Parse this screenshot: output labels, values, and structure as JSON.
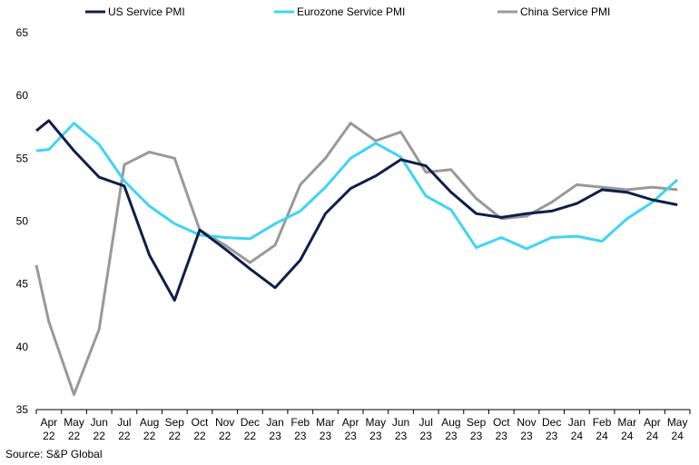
{
  "chart_data": {
    "type": "line",
    "categories": [
      "Apr 22",
      "May 22",
      "Jun 22",
      "Jul 22",
      "Aug 22",
      "Sep 22",
      "Oct 22",
      "Nov 22",
      "Dec 22",
      "Jan 23",
      "Feb 23",
      "Mar 23",
      "Apr 23",
      "May 23",
      "Jun 23",
      "Jul 23",
      "Aug 23",
      "Sep 23",
      "Oct 23",
      "Nov 23",
      "Dec 23",
      "Jan 24",
      "Feb 24",
      "Mar 24",
      "Apr 24",
      "May 24"
    ],
    "x_ticks": [
      {
        "month": "Apr",
        "year": "22"
      },
      {
        "month": "May",
        "year": "22"
      },
      {
        "month": "Jun",
        "year": "22"
      },
      {
        "month": "Jul",
        "year": "22"
      },
      {
        "month": "Aug",
        "year": "22"
      },
      {
        "month": "Sep",
        "year": "22"
      },
      {
        "month": "Oct",
        "year": "22"
      },
      {
        "month": "Nov",
        "year": "22"
      },
      {
        "month": "Dec",
        "year": "22"
      },
      {
        "month": "Jan",
        "year": "23"
      },
      {
        "month": "Feb",
        "year": "23"
      },
      {
        "month": "Mar",
        "year": "23"
      },
      {
        "month": "Apr",
        "year": "23"
      },
      {
        "month": "May",
        "year": "23"
      },
      {
        "month": "Jun",
        "year": "23"
      },
      {
        "month": "Jul",
        "year": "23"
      },
      {
        "month": "Aug",
        "year": "23"
      },
      {
        "month": "Sep",
        "year": "23"
      },
      {
        "month": "Oct",
        "year": "23"
      },
      {
        "month": "Nov",
        "year": "23"
      },
      {
        "month": "Dec",
        "year": "23"
      },
      {
        "month": "Jan",
        "year": "24"
      },
      {
        "month": "Feb",
        "year": "24"
      },
      {
        "month": "Mar",
        "year": "24"
      },
      {
        "month": "Apr",
        "year": "24"
      },
      {
        "month": "May",
        "year": "24"
      }
    ],
    "x_start_lead": [
      {
        "us": 57.2,
        "ez": 55.6,
        "cn": 46.5
      }
    ],
    "series": [
      {
        "name": "US Service PMI",
        "color": "#0d1f4a",
        "values": [
          58.0,
          55.6,
          53.5,
          52.8,
          47.3,
          43.7,
          49.3,
          47.8,
          46.2,
          44.7,
          46.9,
          50.6,
          52.6,
          53.6,
          54.9,
          54.4,
          52.3,
          50.6,
          50.3,
          50.6,
          50.8,
          51.4,
          52.5,
          52.3,
          51.7,
          51.3
        ]
      },
      {
        "name": "Eurozone Service PMI",
        "color": "#3fd4f4",
        "values": [
          55.7,
          57.8,
          56.1,
          53.2,
          51.2,
          49.8,
          48.9,
          48.7,
          48.6,
          49.8,
          50.8,
          52.7,
          55.0,
          56.2,
          55.1,
          52.0,
          50.9,
          47.9,
          48.7,
          47.8,
          48.7,
          48.8,
          48.4,
          50.2,
          51.5,
          53.3
        ]
      },
      {
        "name": "China Service PMI",
        "color": "#999999",
        "values": [
          42.0,
          36.2,
          41.4,
          54.5,
          55.5,
          55.0,
          49.3,
          48.1,
          46.7,
          48.1,
          52.9,
          55.0,
          57.8,
          56.4,
          57.1,
          53.9,
          54.1,
          51.8,
          50.2,
          50.4,
          51.5,
          52.9,
          52.7,
          52.5,
          52.7,
          52.5
        ]
      }
    ],
    "xlabel": "",
    "ylabel": "",
    "ylim": [
      35,
      65
    ],
    "yticks": [
      35,
      40,
      45,
      50,
      55,
      60,
      65
    ],
    "grid": false,
    "legend_position": "top"
  },
  "source": "Source: S&P Global"
}
